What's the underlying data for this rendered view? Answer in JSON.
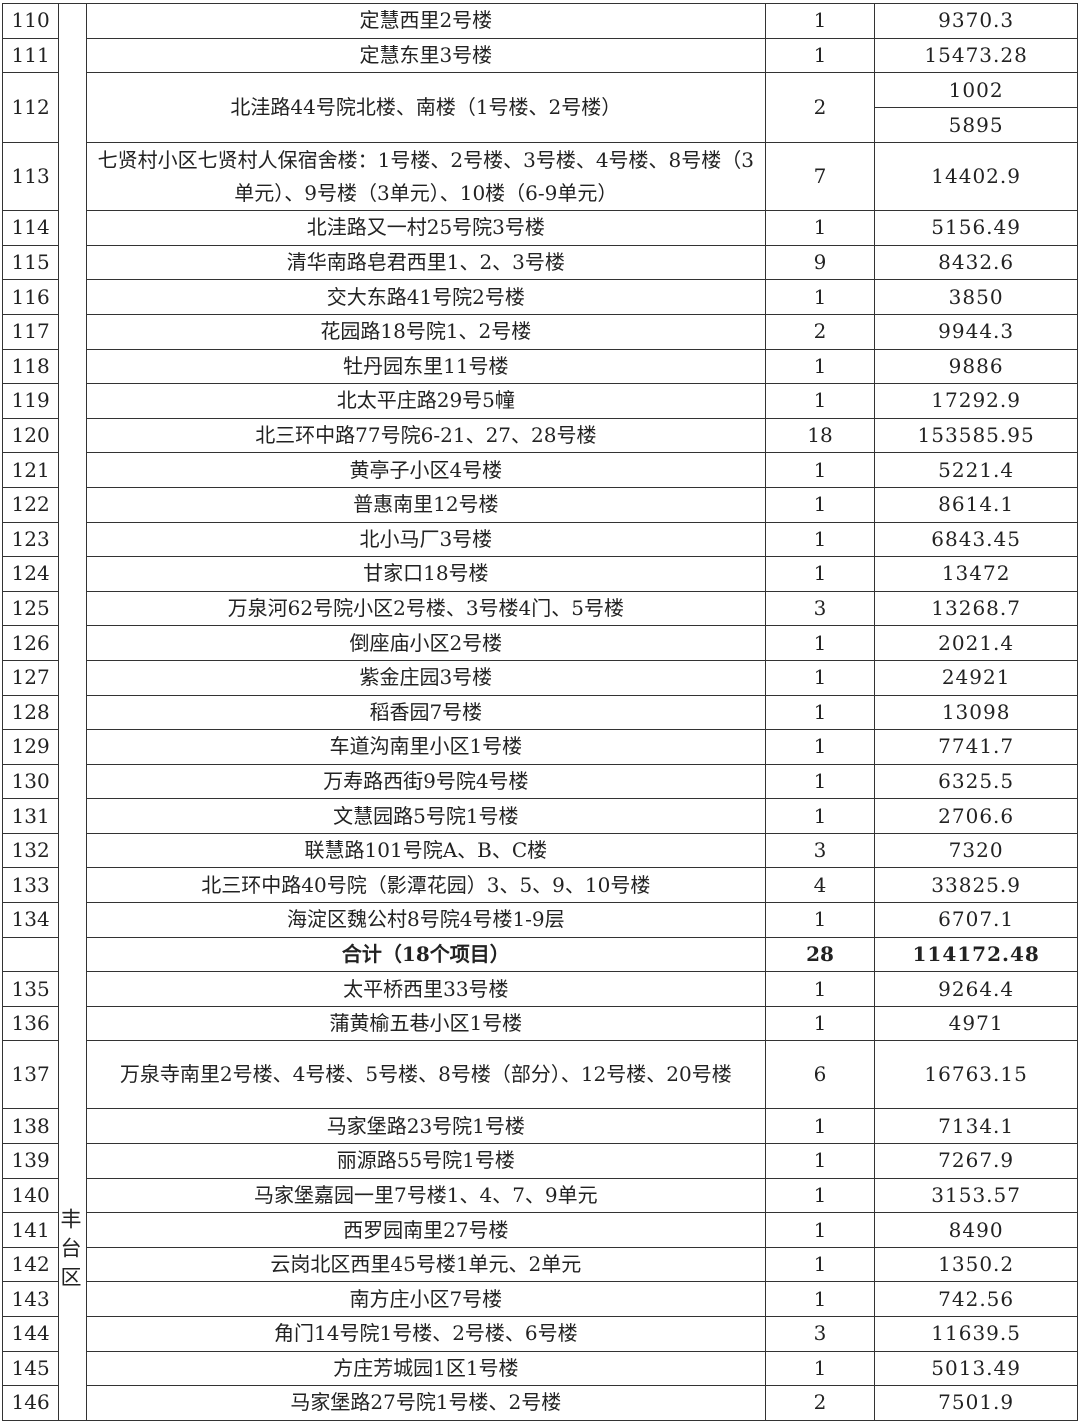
{
  "district": "丰台区",
  "rows": [
    {
      "no": "110",
      "name": "定慧西里2号楼",
      "count": "1",
      "area": [
        "9370.3"
      ]
    },
    {
      "no": "111",
      "name": "定慧东里3号楼",
      "count": "1",
      "area": [
        "15473.28"
      ]
    },
    {
      "no": "112",
      "name": "北洼路44号院北楼、南楼（1号楼、2号楼）",
      "count": "2",
      "area": [
        "1002",
        "5895"
      ]
    },
    {
      "no": "113",
      "name": "七贤村小区七贤村人保宿舍楼：1号楼、2号楼、3号楼、4号楼、8号楼（3单元）、9号楼（3单元）、10楼（6-9单元）",
      "count": "7",
      "area": [
        "14402.9"
      ],
      "tall": true
    },
    {
      "no": "114",
      "name": "北洼路又一村25号院3号楼",
      "count": "1",
      "area": [
        "5156.49"
      ]
    },
    {
      "no": "115",
      "name": "清华南路皂君西里1、2、3号楼",
      "count": "9",
      "area": [
        "8432.6"
      ]
    },
    {
      "no": "116",
      "name": "交大东路41号院2号楼",
      "count": "1",
      "area": [
        "3850"
      ]
    },
    {
      "no": "117",
      "name": "花园路18号院1、2号楼",
      "count": "2",
      "area": [
        "9944.3"
      ]
    },
    {
      "no": "118",
      "name": "牡丹园东里11号楼",
      "count": "1",
      "area": [
        "9886"
      ]
    },
    {
      "no": "119",
      "name": "北太平庄路29号5幢",
      "count": "1",
      "area": [
        "17292.9"
      ]
    },
    {
      "no": "120",
      "name": "北三环中路77号院6-21、27、28号楼",
      "count": "18",
      "area": [
        "153585.95"
      ]
    },
    {
      "no": "121",
      "name": "黄亭子小区4号楼",
      "count": "1",
      "area": [
        "5221.4"
      ]
    },
    {
      "no": "122",
      "name": "普惠南里12号楼",
      "count": "1",
      "area": [
        "8614.1"
      ]
    },
    {
      "no": "123",
      "name": "北小马厂3号楼",
      "count": "1",
      "area": [
        "6843.45"
      ]
    },
    {
      "no": "124",
      "name": "甘家口18号楼",
      "count": "1",
      "area": [
        "13472"
      ]
    },
    {
      "no": "125",
      "name": "万泉河62号院小区2号楼、3号楼4门、5号楼",
      "count": "3",
      "area": [
        "13268.7"
      ]
    },
    {
      "no": "126",
      "name": "倒座庙小区2号楼",
      "count": "1",
      "area": [
        "2021.4"
      ]
    },
    {
      "no": "127",
      "name": "紫金庄园3号楼",
      "count": "1",
      "area": [
        "24921"
      ]
    },
    {
      "no": "128",
      "name": "稻香园7号楼",
      "count": "1",
      "area": [
        "13098"
      ]
    },
    {
      "no": "129",
      "name": "车道沟南里小区1号楼",
      "count": "1",
      "area": [
        "7741.7"
      ]
    },
    {
      "no": "130",
      "name": "万寿路西街9号院4号楼",
      "count": "1",
      "area": [
        "6325.5"
      ]
    },
    {
      "no": "131",
      "name": "文慧园路5号院1号楼",
      "count": "1",
      "area": [
        "2706.6"
      ]
    },
    {
      "no": "132",
      "name": "联慧路101号院A、B、C楼",
      "count": "3",
      "area": [
        "7320"
      ]
    },
    {
      "no": "133",
      "name": "北三环中路40号院（影潭花园）3、5、9、10号楼",
      "count": "4",
      "area": [
        "33825.9"
      ]
    },
    {
      "no": "134",
      "name": "海淀区魏公村8号院4号楼1-9层",
      "count": "1",
      "area": [
        "6707.1"
      ]
    },
    {
      "no": "",
      "name": "合计（18个项目）",
      "count": "28",
      "area": [
        "114172.48"
      ],
      "total": true
    },
    {
      "no": "135",
      "name": "太平桥西里33号楼",
      "count": "1",
      "area": [
        "9264.4"
      ]
    },
    {
      "no": "136",
      "name": "蒲黄榆五巷小区1号楼",
      "count": "1",
      "area": [
        "4971"
      ]
    },
    {
      "no": "137",
      "name": "万泉寺南里2号楼、4号楼、5号楼、8号楼（部分）、12号楼、20号楼",
      "count": "6",
      "area": [
        "16763.15"
      ],
      "tall": true
    },
    {
      "no": "138",
      "name": "马家堡路23号院1号楼",
      "count": "1",
      "area": [
        "7134.1"
      ]
    },
    {
      "no": "139",
      "name": "丽源路55号院1号楼",
      "count": "1",
      "area": [
        "7267.9"
      ]
    },
    {
      "no": "140",
      "name": "马家堡嘉园一里7号楼1、4、7、9单元",
      "count": "1",
      "area": [
        "3153.57"
      ]
    },
    {
      "no": "141",
      "name": "西罗园南里27号楼",
      "count": "1",
      "area": [
        "8490"
      ]
    },
    {
      "no": "142",
      "name": "云岗北区西里45号楼1单元、2单元",
      "count": "1",
      "area": [
        "1350.2"
      ]
    },
    {
      "no": "143",
      "name": "南方庄小区7号楼",
      "count": "1",
      "area": [
        "742.56"
      ]
    },
    {
      "no": "144",
      "name": "角门14号院1号楼、2号楼、6号楼",
      "count": "3",
      "area": [
        "11639.5"
      ]
    },
    {
      "no": "145",
      "name": "方庄芳城园1区1号楼",
      "count": "1",
      "area": [
        "5013.49"
      ]
    },
    {
      "no": "146",
      "name": "马家堡路27号院1号楼、2号楼",
      "count": "2",
      "area": [
        "7501.9"
      ]
    }
  ]
}
